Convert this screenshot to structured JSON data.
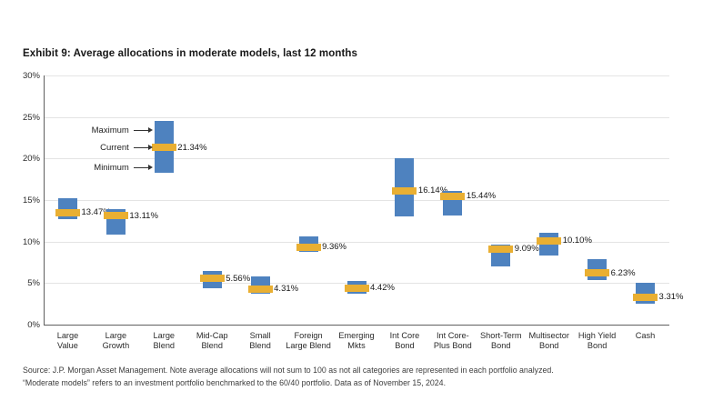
{
  "title": "Exhibit 9: Average allocations in moderate models, last 12 months",
  "footer": {
    "line1": "Source: J.P. Morgan Asset Management. Note average allocations will not sum to 100 as not all categories are represented in each portfolio analyzed.",
    "line2": "“Moderate models” refers to an investment portfolio benchmarked to the 60/40 portfolio. Data as of November 15, 2024."
  },
  "colors": {
    "range_bar": "#4e82bf",
    "current_marker": "#e9af32",
    "gridline": "#e4e4e4",
    "axis": "#5f5f5f",
    "text": "#1f1f1f"
  },
  "chart_data": {
    "type": "bar",
    "subtype": "floating range bars (min-to-max) with current-value marker band",
    "title": "Exhibit 9: Average allocations in moderate models, last 12 months",
    "xlabel": "",
    "ylabel": "",
    "ylim": [
      0,
      30
    ],
    "yticks": [
      30,
      25,
      20,
      15,
      10,
      5,
      0
    ],
    "ytick_labels": [
      "30%",
      "25%",
      "20%",
      "15%",
      "10%",
      "5%",
      "0%"
    ],
    "grid": true,
    "categories": [
      "Large Value",
      "Large Growth",
      "Large Blend",
      "Mid-Cap Blend",
      "Small Blend",
      "Foreign Large Blend",
      "Emerging Mkts",
      "Int Core Bond",
      "Int Core-Plus Bond",
      "Short-Term Bond",
      "Multisector Bond",
      "High Yield Bond",
      "Cash"
    ],
    "category_label_lines": [
      [
        "Large",
        "Value"
      ],
      [
        "Large",
        "Growth"
      ],
      [
        "Large",
        "Blend"
      ],
      [
        "Mid-Cap",
        "Blend"
      ],
      [
        "Small",
        "Blend"
      ],
      [
        "Foreign",
        "Large Blend"
      ],
      [
        "Emerging",
        "Mkts"
      ],
      [
        "Int Core",
        "Bond"
      ],
      [
        "Int Core-",
        "Plus Bond"
      ],
      [
        "Short-Term",
        "Bond"
      ],
      [
        "Multisector",
        "Bond"
      ],
      [
        "High Yield",
        "Bond"
      ],
      [
        "Cash",
        ""
      ]
    ],
    "series": [
      {
        "name": "Minimum",
        "values": [
          12.7,
          10.8,
          18.3,
          4.4,
          3.7,
          8.8,
          3.7,
          13.0,
          13.1,
          7.0,
          8.3,
          5.4,
          2.5
        ]
      },
      {
        "name": "Current",
        "values": [
          13.47,
          13.11,
          21.34,
          5.56,
          4.31,
          9.36,
          4.42,
          16.14,
          15.44,
          9.09,
          10.1,
          6.23,
          3.31
        ]
      },
      {
        "name": "Maximum",
        "values": [
          15.2,
          13.9,
          24.5,
          6.5,
          5.8,
          10.6,
          5.3,
          20.0,
          16.1,
          9.6,
          11.1,
          7.9,
          5.0
        ]
      }
    ],
    "value_labels": [
      "13.47%",
      "13.11%",
      "21.34%",
      "5.56%",
      "4.31%",
      "9.36%",
      "4.42%",
      "16.14%",
      "15.44%",
      "9.09%",
      "10.10%",
      "6.23%",
      "3.31%"
    ],
    "annotations": [
      {
        "label": "Maximum",
        "category": "Large Blend",
        "points_at_value": 23.4
      },
      {
        "label": "Current",
        "category": "Large Blend",
        "points_at_value": 21.34
      },
      {
        "label": "Minimum",
        "category": "Large Blend",
        "points_at_value": 18.9
      }
    ],
    "legend_position": "inline annotation arrows pointing at Large Blend bar"
  }
}
